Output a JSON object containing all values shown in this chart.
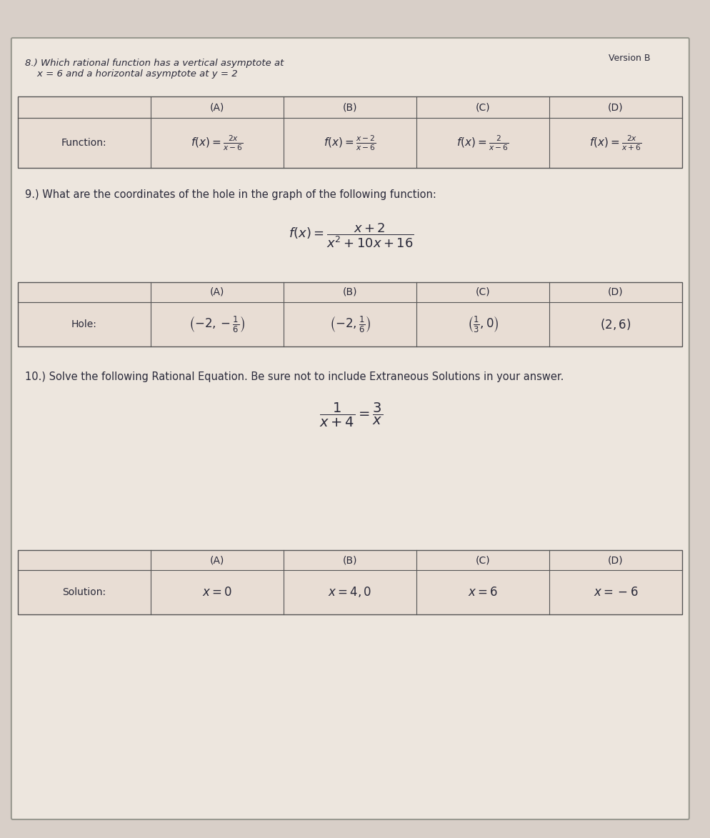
{
  "bg_color": "#d8cfc8",
  "paper_color": "#e8e0d8",
  "paper_inner_color": "#ede6de",
  "header_text": "8.) Which rational function has a vertical asymptote at x = 6 and a horizontal asymptote at y = 2",
  "version_text": "Version B",
  "q9_text": "9.) What are the coordinates of the hole in the graph of the following function:",
  "q9_func": "f(x) = \\frac{x + 2}{x^2 + 10x + 16}",
  "q10_text": "10.) Solve the following Rational Equation. Be sure not to include Extraneous Solutions in your answer.",
  "q10_func": "\\frac{1}{x+4} = \\frac{3}{x}",
  "table1_col_headers": [
    "(A)",
    "(B)",
    "(C)",
    "(D)"
  ],
  "table1_row_label": "Function:",
  "table1_funcs": [
    "f(x) = \\frac{2x}{x - 6}",
    "f(x) = \\frac{x - 2}{x - 6}",
    "f(x) = \\frac{2}{x - 6}",
    "f(x) = \\frac{2x}{x + 6}"
  ],
  "table2_col_headers": [
    "(A)",
    "(B)",
    "(C)",
    "(D)"
  ],
  "table2_row_label": "Hole:",
  "table2_vals": [
    "\\left(-2, -\\frac{1}{6}\\right)",
    "\\left(-2, \\frac{1}{6}\\right)",
    "\\left(\\frac{1}{3}, 0\\right)",
    "(2, 6)"
  ],
  "table3_col_headers": [
    "(A)",
    "(B)",
    "(C)",
    "(D)"
  ],
  "table3_row_label": "Solution:",
  "table3_vals": [
    "x = 0",
    "x = 4, 0",
    "x = 6",
    "x = -6"
  ],
  "text_color": "#2a2a3a",
  "line_color": "#555555",
  "cell_bg": "#e8ddd4",
  "header_cell_bg": "#ddd5cc"
}
